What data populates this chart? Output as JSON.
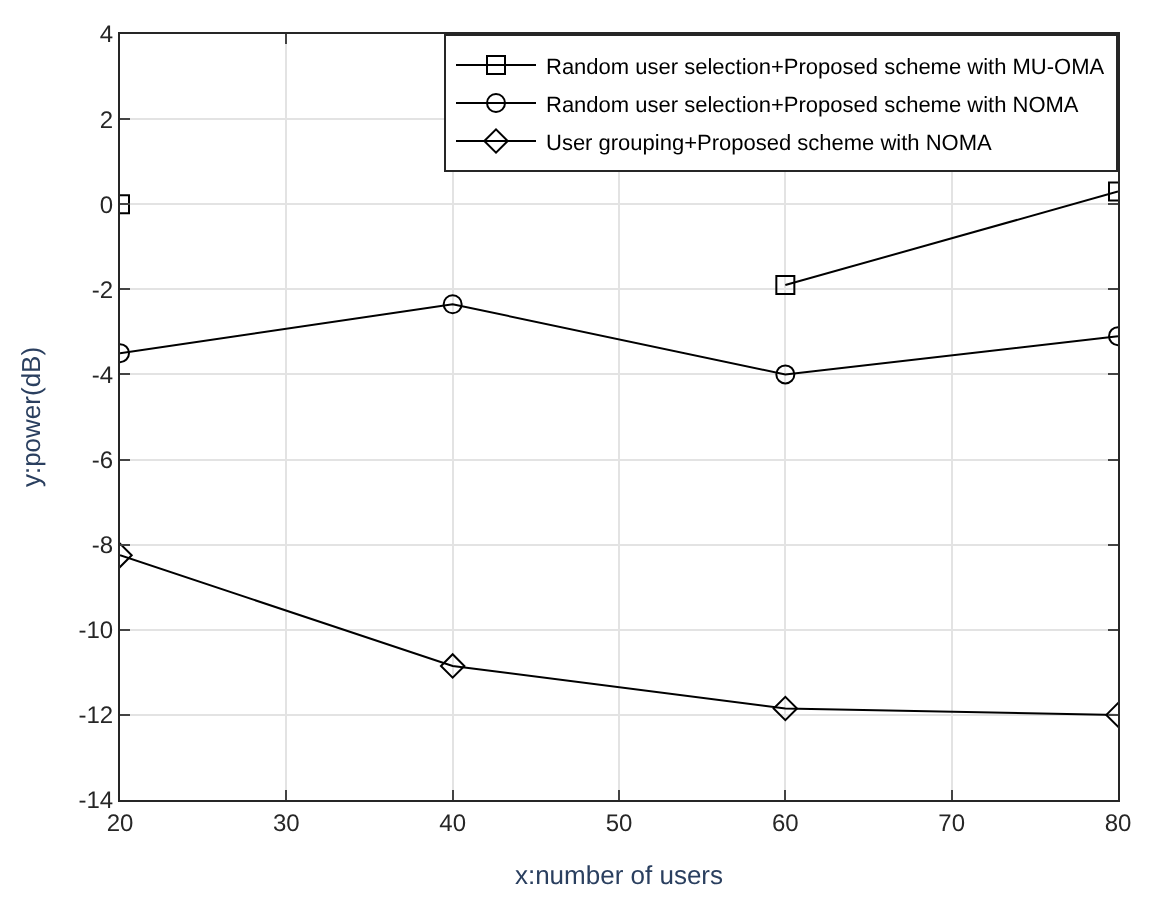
{
  "chart_data": {
    "type": "line",
    "xlabel": "x:number of users",
    "ylabel": "y:power(dB)",
    "x": [
      20,
      40,
      60,
      80
    ],
    "series": [
      {
        "name": "Random user selection+Proposed scheme with MU-OMA",
        "color": "#000000",
        "marker": "square",
        "values": [
          0,
          null,
          -1.9,
          0.3
        ]
      },
      {
        "name": "Random user selection+Proposed scheme with NOMA",
        "color": "#000000",
        "marker": "circle",
        "values": [
          -3.5,
          -2.35,
          -4.0,
          -3.1
        ]
      },
      {
        "name": "User grouping+Proposed scheme with NOMA",
        "color": "#000000",
        "marker": "diamond",
        "values": [
          -8.25,
          -10.85,
          -11.85,
          -12.0
        ]
      }
    ],
    "xlim": [
      20,
      80
    ],
    "xticks": [
      20,
      30,
      40,
      50,
      60,
      70,
      80
    ],
    "ylim": [
      -14,
      4
    ],
    "yticks": [
      -14,
      -12,
      -10,
      -8,
      -6,
      -4,
      -2,
      0,
      2,
      4
    ],
    "grid": true,
    "legend": "top right",
    "line_style": "solid"
  }
}
